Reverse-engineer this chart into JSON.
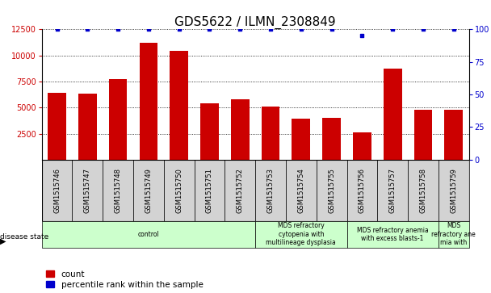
{
  "title": "GDS5622 / ILMN_2308849",
  "samples": [
    "GSM1515746",
    "GSM1515747",
    "GSM1515748",
    "GSM1515749",
    "GSM1515750",
    "GSM1515751",
    "GSM1515752",
    "GSM1515753",
    "GSM1515754",
    "GSM1515755",
    "GSM1515756",
    "GSM1515757",
    "GSM1515758",
    "GSM1515759"
  ],
  "counts": [
    6400,
    6300,
    7700,
    11200,
    10400,
    5400,
    5800,
    5100,
    3900,
    4000,
    2600,
    8700,
    4800,
    4800
  ],
  "percentile_ranks": [
    100,
    100,
    100,
    100,
    100,
    100,
    100,
    100,
    100,
    100,
    95,
    100,
    100,
    100
  ],
  "ylim_left": [
    0,
    12500
  ],
  "ylim_right": [
    0,
    100
  ],
  "yticks_left": [
    2500,
    5000,
    7500,
    10000,
    12500
  ],
  "yticks_right": [
    0,
    25,
    50,
    75,
    100
  ],
  "bar_color": "#cc0000",
  "dot_color": "#0000cc",
  "disease_groups": [
    {
      "label": "control",
      "start": 0,
      "end": 7
    },
    {
      "label": "MDS refractory\ncytopenia with\nmultilineage dysplasia",
      "start": 7,
      "end": 10
    },
    {
      "label": "MDS refractory anemia\nwith excess blasts-1",
      "start": 10,
      "end": 13
    },
    {
      "label": "MDS\nrefractory ane\nmia with",
      "start": 13,
      "end": 14
    }
  ],
  "title_fontsize": 11,
  "axis_fontsize": 7,
  "tick_fontsize": 6,
  "legend_fontsize": 7.5,
  "disease_fontsize": 5.5
}
